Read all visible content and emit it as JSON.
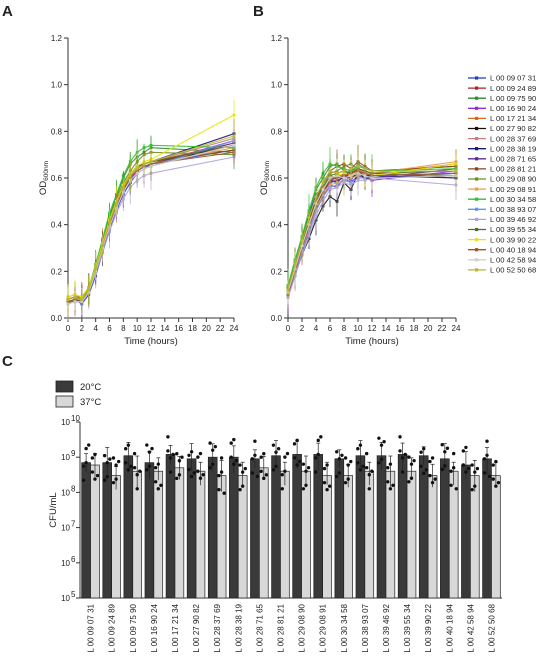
{
  "panels": {
    "a": "A",
    "b": "B",
    "c": "C"
  },
  "chart_data": [
    {
      "id": "A",
      "type": "line",
      "xlabel": "Time (hours)",
      "ylabel": "OD",
      "ylabel_sub": "600nm",
      "x_ticks": [
        "0",
        "2",
        "4",
        "6",
        "8",
        "10",
        "12",
        "14",
        "16",
        "18",
        "20",
        "22",
        "24"
      ],
      "y_ticks": [
        "0.0",
        "0.2",
        "0.4",
        "0.6",
        "0.8",
        "1.0",
        "1.2"
      ],
      "xlim": [
        0,
        24
      ],
      "ylim": [
        0,
        1.2
      ],
      "x": [
        0,
        1,
        2,
        3,
        4,
        5,
        6,
        7,
        8,
        9,
        10,
        11,
        12,
        24
      ],
      "series": [
        {
          "name": "L 00 09 07 31",
          "color": "#1f3fbf",
          "values": [
            0.07,
            0.08,
            0.06,
            0.1,
            0.18,
            0.28,
            0.38,
            0.46,
            0.53,
            0.58,
            0.62,
            0.64,
            0.66,
            0.72
          ]
        },
        {
          "name": "L 00 09 24 89",
          "color": "#b22222",
          "values": [
            0.08,
            0.09,
            0.08,
            0.12,
            0.21,
            0.31,
            0.41,
            0.48,
            0.55,
            0.6,
            0.64,
            0.66,
            0.67,
            0.74
          ]
        },
        {
          "name": "L 00 09 75 90",
          "color": "#2e8b2e",
          "values": [
            0.06,
            0.08,
            0.07,
            0.11,
            0.22,
            0.33,
            0.44,
            0.52,
            0.6,
            0.66,
            0.69,
            0.71,
            0.73,
            0.71
          ]
        },
        {
          "name": "L 00 16 90 24",
          "color": "#8b2be2",
          "values": [
            0.07,
            0.07,
            0.08,
            0.12,
            0.2,
            0.3,
            0.39,
            0.47,
            0.54,
            0.59,
            0.63,
            0.65,
            0.66,
            0.76
          ]
        },
        {
          "name": "L 00 17 21 34",
          "color": "#d2691e",
          "values": [
            0.09,
            0.1,
            0.09,
            0.13,
            0.22,
            0.32,
            0.42,
            0.5,
            0.56,
            0.61,
            0.64,
            0.66,
            0.67,
            0.75
          ]
        },
        {
          "name": "L 00 27 90 82",
          "color": "#111111",
          "values": [
            0.07,
            0.08,
            0.07,
            0.12,
            0.21,
            0.31,
            0.4,
            0.48,
            0.55,
            0.6,
            0.63,
            0.65,
            0.66,
            0.74
          ]
        },
        {
          "name": "L 00 28 37 69",
          "color": "#c08080",
          "values": [
            0.06,
            0.08,
            0.08,
            0.12,
            0.2,
            0.3,
            0.4,
            0.48,
            0.55,
            0.6,
            0.64,
            0.66,
            0.67,
            0.77
          ]
        },
        {
          "name": "L 00 28 38 19",
          "color": "#191970",
          "values": [
            0.08,
            0.09,
            0.08,
            0.13,
            0.22,
            0.32,
            0.42,
            0.5,
            0.57,
            0.62,
            0.65,
            0.66,
            0.67,
            0.79
          ]
        },
        {
          "name": "L 00 28 71 65",
          "color": "#5b2c8f",
          "values": [
            0.07,
            0.07,
            0.07,
            0.11,
            0.2,
            0.3,
            0.4,
            0.48,
            0.55,
            0.6,
            0.63,
            0.65,
            0.66,
            0.75
          ]
        },
        {
          "name": "L 00 28 81 21",
          "color": "#8b4513",
          "values": [
            0.08,
            0.09,
            0.09,
            0.13,
            0.21,
            0.31,
            0.41,
            0.49,
            0.56,
            0.61,
            0.64,
            0.66,
            0.67,
            0.72
          ]
        },
        {
          "name": "L 00 29 08 90",
          "color": "#6b8e23",
          "values": [
            0.06,
            0.08,
            0.07,
            0.12,
            0.21,
            0.32,
            0.43,
            0.51,
            0.58,
            0.63,
            0.67,
            0.7,
            0.71,
            0.7
          ]
        },
        {
          "name": "L 00 29 08 91",
          "color": "#e8a040",
          "values": [
            0.07,
            0.08,
            0.08,
            0.12,
            0.2,
            0.3,
            0.4,
            0.48,
            0.55,
            0.6,
            0.63,
            0.65,
            0.66,
            0.73
          ]
        },
        {
          "name": "L 00 30 34 58",
          "color": "#2fbf2f",
          "values": [
            0.08,
            0.09,
            0.08,
            0.13,
            0.23,
            0.34,
            0.45,
            0.53,
            0.61,
            0.67,
            0.71,
            0.73,
            0.74,
            0.73
          ]
        },
        {
          "name": "L 00 38 93 07",
          "color": "#6495ed",
          "values": [
            0.07,
            0.08,
            0.07,
            0.11,
            0.2,
            0.3,
            0.4,
            0.47,
            0.54,
            0.59,
            0.62,
            0.64,
            0.65,
            0.76
          ]
        },
        {
          "name": "L 00 39 46 92",
          "color": "#b0a0d8",
          "values": [
            0.06,
            0.07,
            0.07,
            0.11,
            0.19,
            0.28,
            0.37,
            0.45,
            0.51,
            0.56,
            0.59,
            0.61,
            0.62,
            0.69
          ]
        },
        {
          "name": "L 00 39 55 34",
          "color": "#556b2f",
          "values": [
            0.08,
            0.09,
            0.08,
            0.12,
            0.21,
            0.31,
            0.41,
            0.49,
            0.56,
            0.61,
            0.64,
            0.66,
            0.67,
            0.74
          ]
        },
        {
          "name": "L 00 39 90 22",
          "color": "#e6e600",
          "values": [
            0.09,
            0.1,
            0.09,
            0.13,
            0.22,
            0.32,
            0.42,
            0.5,
            0.57,
            0.62,
            0.65,
            0.67,
            0.68,
            0.87
          ]
        },
        {
          "name": "L 00 40 18 94",
          "color": "#a0522d",
          "values": [
            0.07,
            0.08,
            0.07,
            0.12,
            0.2,
            0.3,
            0.4,
            0.48,
            0.55,
            0.6,
            0.63,
            0.65,
            0.66,
            0.71
          ]
        },
        {
          "name": "L 00 42 58 94",
          "color": "#d0d0d0",
          "values": [
            0.06,
            0.07,
            0.07,
            0.11,
            0.2,
            0.3,
            0.39,
            0.47,
            0.54,
            0.59,
            0.62,
            0.64,
            0.65,
            0.74
          ]
        },
        {
          "name": "L 00 52 50 68",
          "color": "#b8b832",
          "values": [
            0.08,
            0.09,
            0.08,
            0.12,
            0.21,
            0.31,
            0.41,
            0.49,
            0.56,
            0.61,
            0.64,
            0.66,
            0.67,
            0.78
          ]
        }
      ]
    },
    {
      "id": "B",
      "type": "line",
      "xlabel": "Time (hours)",
      "ylabel": "OD",
      "ylabel_sub": "600nm",
      "x_ticks": [
        "0",
        "2",
        "4",
        "6",
        "8",
        "10",
        "12",
        "14",
        "16",
        "18",
        "20",
        "22",
        "24"
      ],
      "y_ticks": [
        "0.0",
        "0.2",
        "0.4",
        "0.6",
        "0.8",
        "1.0",
        "1.2"
      ],
      "xlim": [
        0,
        24
      ],
      "ylim": [
        0,
        1.2
      ],
      "x": [
        0,
        1,
        2,
        3,
        4,
        5,
        6,
        7,
        8,
        9,
        10,
        11,
        12,
        24
      ],
      "series": [
        {
          "name": "L 00 09 07 31",
          "values": [
            0.1,
            0.22,
            0.32,
            0.44,
            0.53,
            0.56,
            0.6,
            0.6,
            0.61,
            0.59,
            0.63,
            0.62,
            0.6,
            0.62
          ]
        },
        {
          "name": "L 00 09 24 89",
          "values": [
            0.12,
            0.2,
            0.3,
            0.38,
            0.47,
            0.55,
            0.58,
            0.62,
            0.6,
            0.64,
            0.63,
            0.61,
            0.62,
            0.6
          ]
        },
        {
          "name": "L 00 09 75 90",
          "values": [
            0.13,
            0.24,
            0.34,
            0.45,
            0.55,
            0.6,
            0.65,
            0.66,
            0.63,
            0.62,
            0.66,
            0.64,
            0.63,
            0.65
          ]
        },
        {
          "name": "L 00 16 90 24",
          "values": [
            0.09,
            0.18,
            0.28,
            0.37,
            0.46,
            0.52,
            0.57,
            0.56,
            0.6,
            0.58,
            0.61,
            0.6,
            0.59,
            0.63
          ]
        },
        {
          "name": "L 00 17 21 34",
          "values": [
            0.11,
            0.21,
            0.31,
            0.41,
            0.5,
            0.55,
            0.6,
            0.58,
            0.62,
            0.6,
            0.64,
            0.62,
            0.61,
            0.66
          ]
        },
        {
          "name": "L 00 27 90 82",
          "values": [
            0.1,
            0.19,
            0.27,
            0.34,
            0.42,
            0.48,
            0.52,
            0.5,
            0.58,
            0.55,
            0.62,
            0.6,
            0.6,
            0.61
          ]
        },
        {
          "name": "L 00 28 37 69",
          "values": [
            0.12,
            0.22,
            0.32,
            0.41,
            0.5,
            0.56,
            0.61,
            0.6,
            0.62,
            0.63,
            0.64,
            0.63,
            0.62,
            0.66
          ]
        },
        {
          "name": "L 00 28 38 19",
          "values": [
            0.1,
            0.2,
            0.3,
            0.4,
            0.49,
            0.55,
            0.59,
            0.58,
            0.61,
            0.6,
            0.62,
            0.61,
            0.61,
            0.6
          ]
        },
        {
          "name": "L 00 28 71 65",
          "values": [
            0.11,
            0.21,
            0.3,
            0.39,
            0.48,
            0.54,
            0.58,
            0.59,
            0.6,
            0.62,
            0.63,
            0.61,
            0.6,
            0.64
          ]
        },
        {
          "name": "L 00 28 81 21",
          "values": [
            0.12,
            0.23,
            0.33,
            0.42,
            0.51,
            0.58,
            0.63,
            0.65,
            0.66,
            0.64,
            0.67,
            0.65,
            0.63,
            0.65
          ]
        },
        {
          "name": "L 00 29 08 90",
          "values": [
            0.1,
            0.21,
            0.31,
            0.4,
            0.5,
            0.57,
            0.62,
            0.63,
            0.65,
            0.66,
            0.64,
            0.63,
            0.62,
            0.61
          ]
        },
        {
          "name": "L 00 29 08 91",
          "values": [
            0.11,
            0.2,
            0.29,
            0.38,
            0.47,
            0.53,
            0.57,
            0.58,
            0.59,
            0.6,
            0.61,
            0.62,
            0.62,
            0.67
          ]
        },
        {
          "name": "L 00 30 34 58",
          "values": [
            0.14,
            0.25,
            0.35,
            0.46,
            0.56,
            0.62,
            0.66,
            0.65,
            0.64,
            0.63,
            0.65,
            0.64,
            0.63,
            0.64
          ]
        },
        {
          "name": "L 00 38 93 07",
          "values": [
            0.1,
            0.19,
            0.28,
            0.37,
            0.46,
            0.52,
            0.56,
            0.57,
            0.59,
            0.58,
            0.6,
            0.6,
            0.61,
            0.62
          ]
        },
        {
          "name": "L 00 39 46 92",
          "values": [
            0.09,
            0.18,
            0.27,
            0.35,
            0.44,
            0.5,
            0.55,
            0.56,
            0.58,
            0.57,
            0.59,
            0.59,
            0.6,
            0.57
          ]
        },
        {
          "name": "L 00 39 55 34",
          "values": [
            0.11,
            0.22,
            0.32,
            0.41,
            0.5,
            0.56,
            0.61,
            0.62,
            0.63,
            0.62,
            0.64,
            0.63,
            0.62,
            0.63
          ]
        },
        {
          "name": "L 00 39 90 22",
          "values": [
            0.12,
            0.21,
            0.31,
            0.4,
            0.49,
            0.55,
            0.6,
            0.61,
            0.62,
            0.61,
            0.63,
            0.62,
            0.61,
            0.66
          ]
        },
        {
          "name": "L 00 40 18 94",
          "values": [
            0.1,
            0.2,
            0.3,
            0.39,
            0.48,
            0.54,
            0.59,
            0.6,
            0.61,
            0.62,
            0.63,
            0.62,
            0.61,
            0.62
          ]
        },
        {
          "name": "L 00 42 58 94",
          "values": [
            0.11,
            0.21,
            0.31,
            0.4,
            0.49,
            0.55,
            0.6,
            0.61,
            0.6,
            0.61,
            0.62,
            0.61,
            0.6,
            0.61
          ]
        },
        {
          "name": "L 00 52 50 68",
          "values": [
            0.12,
            0.23,
            0.33,
            0.43,
            0.52,
            0.58,
            0.63,
            0.62,
            0.63,
            0.64,
            0.65,
            0.64,
            0.63,
            0.63
          ]
        }
      ]
    },
    {
      "id": "C",
      "type": "bar",
      "ylabel": "CFU/mL",
      "y_scale": "log",
      "ylim": [
        100000,
        10000000000
      ],
      "y_ticks": [
        "10",
        "10",
        "10",
        "10",
        "10",
        "10"
      ],
      "y_tick_exponents": [
        "5",
        "6",
        "7",
        "8",
        "9",
        "10"
      ],
      "categories": [
        "L 00 09 07 31",
        "L 00 09 24 89",
        "L 00 09 75 90",
        "L 00 16 90 24",
        "L 00 17 21 34",
        "L 00 27 90 82",
        "L 00 28 37 69",
        "L 00 28 38 19",
        "L 00 28 71 65",
        "L 00 28 81 21",
        "L 00 29 08 90",
        "L 00 29 08 91",
        "L 00 30 34 58",
        "L 00 38 93 07",
        "L 00 39 46 92",
        "L 00 39 55 34",
        "L 00 39 90 22",
        "L 00 40 18 94",
        "L 00 42 58 94",
        "L 00 52 50 68"
      ],
      "series": [
        {
          "name": "20°C",
          "color": "#3a3a3a",
          "values": [
            700000000,
            700000000,
            1100000000,
            700000000,
            1200000000,
            900000000,
            1000000000,
            1000000000,
            900000000,
            1100000000,
            1200000000,
            1200000000,
            900000000,
            1100000000,
            1100000000,
            1200000000,
            1100000000,
            900000000,
            600000000,
            900000000
          ]
        },
        {
          "name": "37°C",
          "color": "#d8d8d8",
          "values": [
            600000000,
            300000000,
            400000000,
            400000000,
            500000000,
            400000000,
            300000000,
            300000000,
            500000000,
            400000000,
            400000000,
            300000000,
            300000000,
            400000000,
            400000000,
            400000000,
            300000000,
            400000000,
            300000000,
            300000000
          ]
        }
      ]
    }
  ]
}
